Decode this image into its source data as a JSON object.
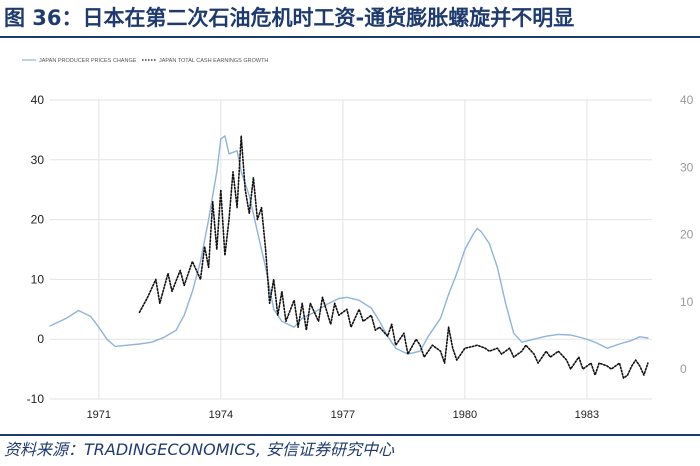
{
  "figure": {
    "title": "图 36：日本在第二次石油危机时工资-通货膨胀螺旋并不明显",
    "source": "资料来源：TRADINGECONOMICS, 安信证券研究中心"
  },
  "colors": {
    "brand": "#1f3b6e",
    "ppi_line": "#8fb3d9",
    "wage_line": "#111111",
    "grid": "#e3e3e3"
  },
  "chart_data": {
    "type": "line",
    "title": "",
    "xlabel": "",
    "ylabel": "",
    "grid": true,
    "legend_position": "top-left",
    "x_ticks": [
      "1971",
      "1974",
      "1977",
      "1980",
      "1983"
    ],
    "x_range": [
      1969.8,
      1984.6
    ],
    "y_left": {
      "ticks": [
        "40",
        "30",
        "20",
        "10",
        "0",
        "-10"
      ],
      "range": [
        -10,
        40
      ]
    },
    "y_right": {
      "ticks": [
        "40",
        "30",
        "20",
        "10",
        "0"
      ],
      "range": [
        0,
        40
      ]
    },
    "series": [
      {
        "name": "JAPAN PRODUCER PRICES CHANGE",
        "axis": "left",
        "style": "solid",
        "points": [
          [
            1969.8,
            2.2
          ],
          [
            1970.2,
            3.5
          ],
          [
            1970.5,
            4.8
          ],
          [
            1970.8,
            3.8
          ],
          [
            1971.0,
            2.0
          ],
          [
            1971.2,
            0.0
          ],
          [
            1971.4,
            -1.2
          ],
          [
            1971.7,
            -1.0
          ],
          [
            1972.0,
            -0.8
          ],
          [
            1972.3,
            -0.5
          ],
          [
            1972.6,
            0.3
          ],
          [
            1972.9,
            1.5
          ],
          [
            1973.1,
            4.0
          ],
          [
            1973.3,
            8.0
          ],
          [
            1973.5,
            13.0
          ],
          [
            1973.7,
            20.0
          ],
          [
            1973.9,
            28.0
          ],
          [
            1974.0,
            33.5
          ],
          [
            1974.1,
            34.0
          ],
          [
            1974.2,
            31.0
          ],
          [
            1974.4,
            31.5
          ],
          [
            1974.5,
            28.0
          ],
          [
            1974.7,
            24.0
          ],
          [
            1974.9,
            18.0
          ],
          [
            1975.1,
            12.0
          ],
          [
            1975.3,
            5.0
          ],
          [
            1975.5,
            3.0
          ],
          [
            1975.8,
            2.0
          ],
          [
            1976.0,
            3.5
          ],
          [
            1976.3,
            4.5
          ],
          [
            1976.6,
            5.8
          ],
          [
            1976.9,
            6.8
          ],
          [
            1977.1,
            7.0
          ],
          [
            1977.4,
            6.5
          ],
          [
            1977.7,
            5.2
          ],
          [
            1977.9,
            3.0
          ],
          [
            1978.1,
            0.5
          ],
          [
            1978.3,
            -1.5
          ],
          [
            1978.6,
            -2.5
          ],
          [
            1978.9,
            -2.0
          ],
          [
            1979.1,
            0.5
          ],
          [
            1979.4,
            3.5
          ],
          [
            1979.6,
            7.5
          ],
          [
            1979.8,
            11.0
          ],
          [
            1980.0,
            15.0
          ],
          [
            1980.2,
            17.5
          ],
          [
            1980.3,
            18.5
          ],
          [
            1980.4,
            18.0
          ],
          [
            1980.6,
            16.0
          ],
          [
            1980.8,
            12.0
          ],
          [
            1981.0,
            6.0
          ],
          [
            1981.2,
            1.0
          ],
          [
            1981.4,
            -0.5
          ],
          [
            1981.7,
            0.0
          ],
          [
            1982.0,
            0.5
          ],
          [
            1982.3,
            0.8
          ],
          [
            1982.6,
            0.7
          ],
          [
            1982.9,
            0.2
          ],
          [
            1983.2,
            -0.5
          ],
          [
            1983.5,
            -1.5
          ],
          [
            1983.8,
            -0.8
          ],
          [
            1984.1,
            -0.2
          ],
          [
            1984.3,
            0.4
          ],
          [
            1984.5,
            0.2
          ]
        ]
      },
      {
        "name": "JAPAN TOTAL CASH EARNINGS GROWTH",
        "axis": "left",
        "style": "dotted",
        "points": [
          [
            1972.0,
            4.5
          ],
          [
            1972.2,
            7.0
          ],
          [
            1972.4,
            10.0
          ],
          [
            1972.5,
            6.0
          ],
          [
            1972.7,
            11.0
          ],
          [
            1972.8,
            8.0
          ],
          [
            1973.0,
            11.5
          ],
          [
            1973.1,
            9.0
          ],
          [
            1973.3,
            13.0
          ],
          [
            1973.5,
            10.0
          ],
          [
            1973.6,
            15.5
          ],
          [
            1973.7,
            12.0
          ],
          [
            1973.8,
            23.0
          ],
          [
            1973.9,
            15.0
          ],
          [
            1974.0,
            25.0
          ],
          [
            1974.1,
            14.0
          ],
          [
            1974.2,
            20.0
          ],
          [
            1974.3,
            28.0
          ],
          [
            1974.4,
            22.0
          ],
          [
            1974.5,
            34.0
          ],
          [
            1974.6,
            25.0
          ],
          [
            1974.7,
            21.0
          ],
          [
            1974.8,
            27.0
          ],
          [
            1974.9,
            20.0
          ],
          [
            1975.0,
            22.0
          ],
          [
            1975.1,
            15.0
          ],
          [
            1975.2,
            6.0
          ],
          [
            1975.3,
            10.0
          ],
          [
            1975.4,
            4.0
          ],
          [
            1975.5,
            8.0
          ],
          [
            1975.6,
            3.0
          ],
          [
            1975.8,
            6.5
          ],
          [
            1975.9,
            2.0
          ],
          [
            1976.0,
            6.0
          ],
          [
            1976.1,
            1.5
          ],
          [
            1976.2,
            6.0
          ],
          [
            1976.4,
            3.0
          ],
          [
            1976.5,
            7.0
          ],
          [
            1976.7,
            2.5
          ],
          [
            1976.8,
            6.0
          ],
          [
            1976.9,
            4.0
          ],
          [
            1977.1,
            5.0
          ],
          [
            1977.2,
            2.0
          ],
          [
            1977.4,
            5.0
          ],
          [
            1977.5,
            3.0
          ],
          [
            1977.7,
            4.0
          ],
          [
            1977.8,
            1.5
          ],
          [
            1977.9,
            2.0
          ],
          [
            1978.1,
            0.5
          ],
          [
            1978.2,
            2.5
          ],
          [
            1978.3,
            -1.0
          ],
          [
            1978.5,
            1.0
          ],
          [
            1978.6,
            -2.5
          ],
          [
            1978.8,
            0.0
          ],
          [
            1978.9,
            -1.0
          ],
          [
            1979.0,
            -3.0
          ],
          [
            1979.2,
            -1.0
          ],
          [
            1979.4,
            -2.0
          ],
          [
            1979.5,
            -4.0
          ],
          [
            1979.6,
            2.0
          ],
          [
            1979.7,
            -1.5
          ],
          [
            1979.8,
            -3.5
          ],
          [
            1980.0,
            -1.5
          ],
          [
            1980.2,
            -1.2
          ],
          [
            1980.3,
            -1.0
          ],
          [
            1980.5,
            -1.5
          ],
          [
            1980.6,
            -2.0
          ],
          [
            1980.8,
            -1.5
          ],
          [
            1980.9,
            -2.5
          ],
          [
            1981.1,
            -1.5
          ],
          [
            1981.2,
            -3.0
          ],
          [
            1981.4,
            -2.0
          ],
          [
            1981.5,
            -1.0
          ],
          [
            1981.7,
            -2.5
          ],
          [
            1981.8,
            -4.0
          ],
          [
            1982.0,
            -2.0
          ],
          [
            1982.1,
            -3.0
          ],
          [
            1982.3,
            -2.0
          ],
          [
            1982.5,
            -3.5
          ],
          [
            1982.6,
            -5.0
          ],
          [
            1982.8,
            -3.0
          ],
          [
            1982.9,
            -5.0
          ],
          [
            1983.1,
            -4.0
          ],
          [
            1983.2,
            -6.0
          ],
          [
            1983.3,
            -4.0
          ],
          [
            1983.5,
            -4.5
          ],
          [
            1983.6,
            -5.0
          ],
          [
            1983.8,
            -4.0
          ],
          [
            1983.9,
            -6.5
          ],
          [
            1984.0,
            -6.0
          ],
          [
            1984.1,
            -4.5
          ],
          [
            1984.2,
            -3.5
          ],
          [
            1984.3,
            -4.5
          ],
          [
            1984.4,
            -6.0
          ],
          [
            1984.5,
            -4.0
          ]
        ]
      }
    ]
  }
}
